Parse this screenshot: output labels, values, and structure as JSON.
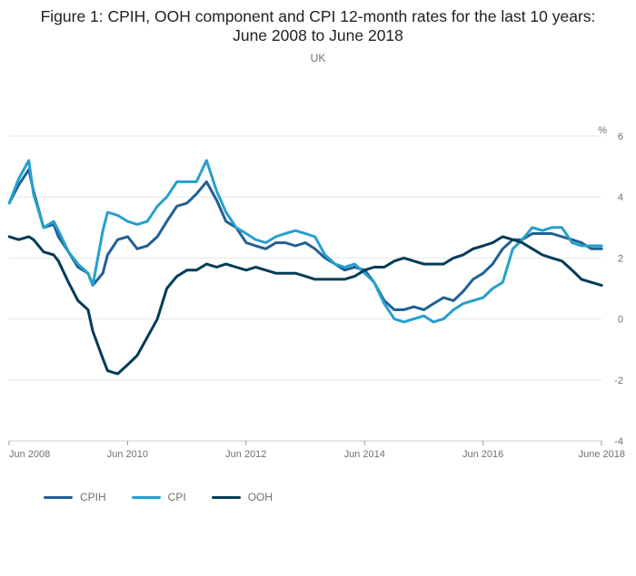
{
  "chart_data": {
    "type": "line",
    "title": "Figure 1: CPIH, OOH component and CPI 12-month rates for the last 10 years: June 2008 to June 2018",
    "subtitle": "UK",
    "unit_label": "%",
    "ylim": [
      -4,
      6
    ],
    "y_ticks": [
      6,
      4,
      2,
      0,
      -2,
      -4
    ],
    "x_ticks": [
      {
        "label": "Jun 2008",
        "x": "2008.417"
      },
      {
        "label": "Jun 2010",
        "x": "2010.417"
      },
      {
        "label": "Jun 2012",
        "x": "2012.417"
      },
      {
        "label": "Jun 2014",
        "x": "2014.417"
      },
      {
        "label": "Jun 2016",
        "x": "2016.417"
      },
      {
        "label": "June 2018",
        "x": "2018.417"
      }
    ],
    "x_range": [
      2008.417,
      2018.417
    ],
    "grid": true,
    "legend_position": "bottom-left",
    "series": [
      {
        "name": "CPIH",
        "color": "#206095",
        "x": [
          2008.42,
          2008.58,
          2008.75,
          2008.83,
          2009.0,
          2009.17,
          2009.25,
          2009.42,
          2009.58,
          2009.75,
          2009.83,
          2010.0,
          2010.08,
          2010.25,
          2010.42,
          2010.58,
          2010.75,
          2010.92,
          2011.08,
          2011.25,
          2011.42,
          2011.58,
          2011.75,
          2011.92,
          2012.08,
          2012.25,
          2012.42,
          2012.58,
          2012.75,
          2012.92,
          2013.08,
          2013.25,
          2013.42,
          2013.58,
          2013.75,
          2013.92,
          2014.08,
          2014.25,
          2014.42,
          2014.58,
          2014.75,
          2014.92,
          2015.08,
          2015.25,
          2015.42,
          2015.58,
          2015.75,
          2015.92,
          2016.08,
          2016.25,
          2016.42,
          2016.58,
          2016.75,
          2016.92,
          2017.08,
          2017.25,
          2017.42,
          2017.58,
          2017.75,
          2017.92,
          2018.08,
          2018.25,
          2018.42
        ],
        "y": [
          3.8,
          4.4,
          4.9,
          4.2,
          3.0,
          3.1,
          2.7,
          2.2,
          1.7,
          1.5,
          1.1,
          1.5,
          2.1,
          2.6,
          2.7,
          2.3,
          2.4,
          2.7,
          3.2,
          3.7,
          3.8,
          4.1,
          4.5,
          3.9,
          3.2,
          3.0,
          2.5,
          2.4,
          2.3,
          2.5,
          2.5,
          2.4,
          2.5,
          2.3,
          2.0,
          1.8,
          1.6,
          1.7,
          1.6,
          1.2,
          0.6,
          0.3,
          0.3,
          0.4,
          0.3,
          0.5,
          0.7,
          0.6,
          0.9,
          1.3,
          1.5,
          1.8,
          2.3,
          2.6,
          2.6,
          2.8,
          2.8,
          2.8,
          2.7,
          2.6,
          2.5,
          2.3,
          2.3
        ]
      },
      {
        "name": "CPI",
        "color": "#27a0cc",
        "x": [
          2008.42,
          2008.58,
          2008.75,
          2008.83,
          2009.0,
          2009.17,
          2009.25,
          2009.42,
          2009.58,
          2009.75,
          2009.83,
          2010.0,
          2010.08,
          2010.25,
          2010.42,
          2010.58,
          2010.75,
          2010.92,
          2011.08,
          2011.25,
          2011.42,
          2011.58,
          2011.75,
          2011.92,
          2012.08,
          2012.25,
          2012.42,
          2012.58,
          2012.75,
          2012.92,
          2013.08,
          2013.25,
          2013.42,
          2013.58,
          2013.75,
          2013.92,
          2014.08,
          2014.25,
          2014.42,
          2014.58,
          2014.75,
          2014.92,
          2015.08,
          2015.25,
          2015.42,
          2015.58,
          2015.75,
          2015.92,
          2016.08,
          2016.25,
          2016.42,
          2016.58,
          2016.75,
          2016.92,
          2017.08,
          2017.25,
          2017.42,
          2017.58,
          2017.75,
          2017.92,
          2018.08,
          2018.25,
          2018.42
        ],
        "y": [
          3.8,
          4.6,
          5.2,
          4.1,
          3.0,
          3.2,
          2.9,
          2.2,
          1.8,
          1.5,
          1.1,
          2.9,
          3.5,
          3.4,
          3.2,
          3.1,
          3.2,
          3.7,
          4.0,
          4.5,
          4.5,
          4.5,
          5.2,
          4.2,
          3.5,
          3.0,
          2.8,
          2.6,
          2.5,
          2.7,
          2.8,
          2.9,
          2.8,
          2.7,
          2.1,
          1.8,
          1.7,
          1.8,
          1.5,
          1.2,
          0.5,
          0.0,
          -0.1,
          0.0,
          0.1,
          -0.1,
          0.0,
          0.3,
          0.5,
          0.6,
          0.7,
          1.0,
          1.2,
          2.3,
          2.6,
          3.0,
          2.9,
          3.0,
          3.0,
          2.5,
          2.4,
          2.4,
          2.4
        ]
      },
      {
        "name": "OOH",
        "color": "#003c57",
        "x": [
          2008.42,
          2008.58,
          2008.75,
          2008.83,
          2009.0,
          2009.17,
          2009.25,
          2009.42,
          2009.58,
          2009.75,
          2009.83,
          2010.0,
          2010.08,
          2010.25,
          2010.42,
          2010.58,
          2010.75,
          2010.92,
          2011.08,
          2011.25,
          2011.42,
          2011.58,
          2011.75,
          2011.92,
          2012.08,
          2012.25,
          2012.42,
          2012.58,
          2012.75,
          2012.92,
          2013.08,
          2013.25,
          2013.42,
          2013.58,
          2013.75,
          2013.92,
          2014.08,
          2014.25,
          2014.42,
          2014.58,
          2014.75,
          2014.92,
          2015.08,
          2015.25,
          2015.42,
          2015.58,
          2015.75,
          2015.92,
          2016.08,
          2016.25,
          2016.42,
          2016.58,
          2016.75,
          2016.92,
          2017.08,
          2017.25,
          2017.42,
          2017.58,
          2017.75,
          2017.92,
          2018.08,
          2018.25,
          2018.42
        ],
        "y": [
          2.7,
          2.6,
          2.7,
          2.6,
          2.2,
          2.1,
          1.9,
          1.2,
          0.6,
          0.3,
          -0.4,
          -1.3,
          -1.7,
          -1.8,
          -1.5,
          -1.2,
          -0.6,
          0.0,
          1.0,
          1.4,
          1.6,
          1.6,
          1.8,
          1.7,
          1.8,
          1.7,
          1.6,
          1.7,
          1.6,
          1.5,
          1.5,
          1.5,
          1.4,
          1.3,
          1.3,
          1.3,
          1.3,
          1.4,
          1.6,
          1.7,
          1.7,
          1.9,
          2.0,
          1.9,
          1.8,
          1.8,
          1.8,
          2.0,
          2.1,
          2.3,
          2.4,
          2.5,
          2.7,
          2.6,
          2.5,
          2.3,
          2.1,
          2.0,
          1.9,
          1.6,
          1.3,
          1.2,
          1.1
        ]
      }
    ]
  }
}
